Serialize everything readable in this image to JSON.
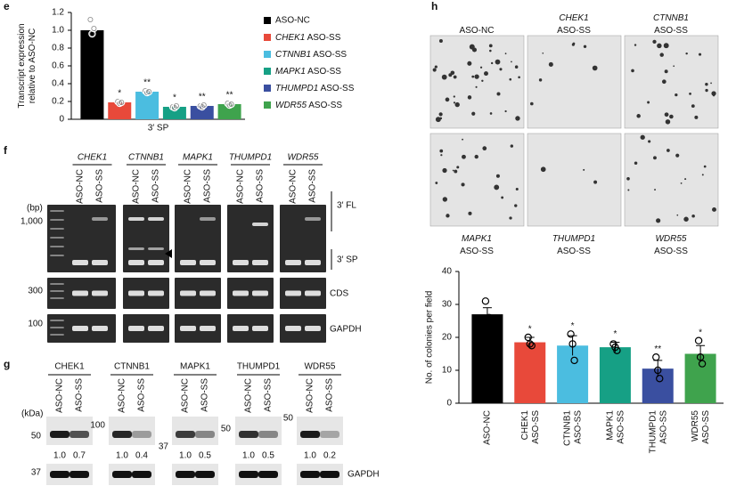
{
  "panel_labels": [
    "e",
    "f",
    "g",
    "h"
  ],
  "chart_data": [
    {
      "type": "bar",
      "ylabel": "Transcript expression relative to ASO-NC",
      "xlabel": "3′ SP",
      "categories": [
        "ASO-NC",
        "CHEK1 ASO-SS",
        "CTNNB1 ASO-SS",
        "MAPK1 ASO-SS",
        "THUMPD1 ASO-SS",
        "WDR55 ASO-SS"
      ],
      "values": [
        1.0,
        0.19,
        0.31,
        0.14,
        0.15,
        0.17
      ],
      "colors": [
        "#000000",
        "#e8493a",
        "#4bbde0",
        "#16a085",
        "#3a4fa0",
        "#3fa34d"
      ],
      "significance": [
        null,
        "*",
        "**",
        "*",
        "**",
        "**"
      ],
      "points": [
        [
          1.12,
          0.96,
          1.02
        ],
        [
          0.2,
          0.18,
          0.19
        ],
        [
          0.32,
          0.3,
          0.31
        ],
        [
          0.14,
          0.13,
          0.15
        ],
        [
          0.15,
          0.14,
          0.16
        ],
        [
          0.18,
          0.16,
          0.17
        ]
      ],
      "ylim": [
        0,
        1.2
      ],
      "yticks": [
        0,
        0.2,
        0.4,
        0.6,
        0.8,
        {
          "value": 1,
          "label": "1.0"
        },
        1.2
      ],
      "legend": "right"
    },
    {
      "type": "bar",
      "ylabel": "No. of colonies per field",
      "categories": [
        "ASO-NC",
        "CHEK1 ASO-SS",
        "CTNNB1 ASO-SS",
        "MAPK1 ASO-SS",
        "THUMPD1 ASO-SS",
        "WDR55 ASO-SS"
      ],
      "values": [
        27,
        18.5,
        17.5,
        17,
        10.5,
        15
      ],
      "errors": [
        2,
        1.5,
        3,
        1.5,
        2.5,
        2.5
      ],
      "colors": [
        "#000000",
        "#e8493a",
        "#4bbde0",
        "#16a085",
        "#3a4fa0",
        "#3fa34d"
      ],
      "significance": [
        null,
        "*",
        "*",
        "*",
        "**",
        "*"
      ],
      "points": [
        [
          31,
          25,
          26
        ],
        [
          20,
          18,
          17.5
        ],
        [
          21,
          18,
          13
        ],
        [
          18,
          17,
          16
        ],
        [
          14,
          10,
          7.5
        ],
        [
          19,
          14,
          12
        ]
      ],
      "ylim": [
        0,
        40
      ],
      "yticks": [
        0,
        10,
        20,
        30,
        40
      ]
    }
  ],
  "panel_f": {
    "genes": [
      "CHEK1",
      "CTNNB1",
      "MAPK1",
      "THUMPD1",
      "WDR55"
    ],
    "lanes": [
      "ASO-NC",
      "ASO-SS"
    ],
    "size_unit": "(bp)",
    "sizes": [
      "1,000",
      "300",
      "100"
    ],
    "bands": [
      "3′ FL",
      "3′ SP",
      "CDS",
      "GAPDH"
    ]
  },
  "panel_g": {
    "proteins": [
      "CHEK1",
      "CTNNB1",
      "MAPK1",
      "THUMPD1",
      "WDR55"
    ],
    "lanes": [
      "ASO-NC",
      "ASO-SS"
    ],
    "size_unit": "(kDa)",
    "markers": [
      "50",
      "100",
      "37",
      "50",
      "50"
    ],
    "ratios": [
      [
        "1.0",
        "0.7"
      ],
      [
        "1.0",
        "0.4"
      ],
      [
        "1.0",
        "0.5"
      ],
      [
        "1.0",
        "0.5"
      ],
      [
        "1.0",
        "0.2"
      ]
    ],
    "loading_marker": "37",
    "loading": "GAPDH"
  },
  "panel_h_images": {
    "labels": [
      "ASO-NC",
      "CHEK1 ASO-SS",
      "CTNNB1 ASO-SS",
      "MAPK1 ASO-SS",
      "THUMPD1 ASO-SS",
      "WDR55 ASO-SS"
    ]
  }
}
